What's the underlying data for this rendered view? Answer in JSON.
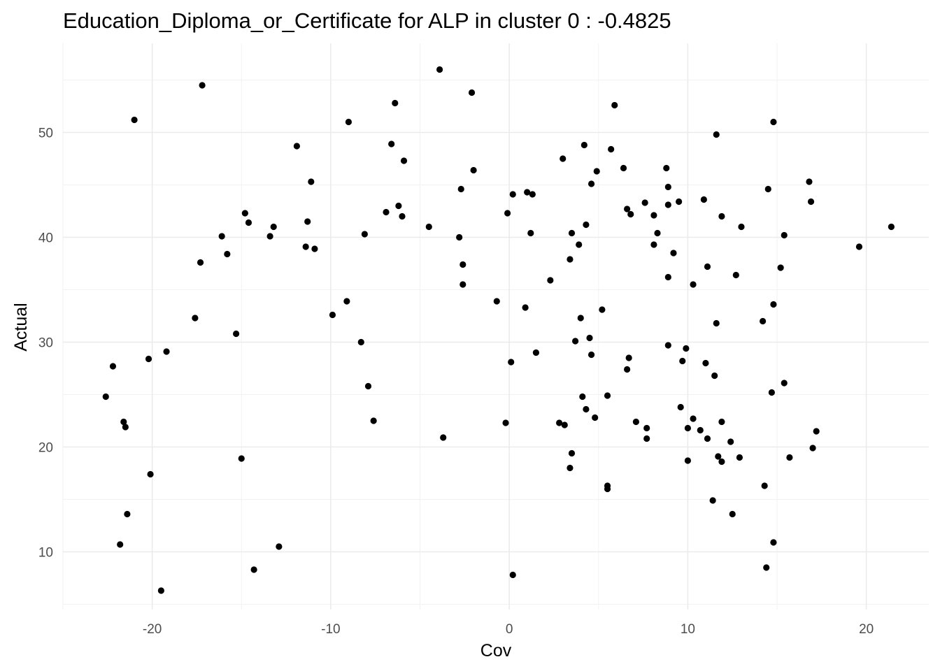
{
  "chart_data": {
    "type": "scatter",
    "title": "Education_Diploma_or_Certificate for ALP in cluster 0 : -0.4825",
    "xlabel": "Cov",
    "ylabel": "Actual",
    "xlim": [
      -25,
      23.5
    ],
    "ylim": [
      4.5,
      58.5
    ],
    "x_ticks": [
      -20,
      -10,
      0,
      10,
      20
    ],
    "y_ticks": [
      10,
      20,
      30,
      40,
      50
    ],
    "x_tick_labels": [
      "-20",
      "-10",
      "0",
      "10",
      "20"
    ],
    "y_tick_labels": [
      "10",
      "20",
      "30",
      "40",
      "50"
    ],
    "grid": true,
    "legend": "none",
    "point_color": "#000000",
    "points": [
      {
        "x": -22.6,
        "y": 24.8
      },
      {
        "x": -22.2,
        "y": 27.7
      },
      {
        "x": -21.6,
        "y": 22.4
      },
      {
        "x": -21.5,
        "y": 21.9
      },
      {
        "x": -21.4,
        "y": 13.6
      },
      {
        "x": -21.8,
        "y": 10.7
      },
      {
        "x": -21.0,
        "y": 51.2
      },
      {
        "x": -20.2,
        "y": 28.4
      },
      {
        "x": -20.1,
        "y": 17.4
      },
      {
        "x": -19.5,
        "y": 6.3
      },
      {
        "x": -19.2,
        "y": 29.1
      },
      {
        "x": -17.6,
        "y": 32.3
      },
      {
        "x": -17.3,
        "y": 37.6
      },
      {
        "x": -17.2,
        "y": 54.5
      },
      {
        "x": -16.1,
        "y": 40.1
      },
      {
        "x": -15.8,
        "y": 38.4
      },
      {
        "x": -15.3,
        "y": 30.8
      },
      {
        "x": -15.0,
        "y": 18.9
      },
      {
        "x": -14.8,
        "y": 42.3
      },
      {
        "x": -14.6,
        "y": 41.4
      },
      {
        "x": -14.3,
        "y": 8.3
      },
      {
        "x": -13.4,
        "y": 40.1
      },
      {
        "x": -13.2,
        "y": 41.0
      },
      {
        "x": -12.9,
        "y": 10.5
      },
      {
        "x": -11.9,
        "y": 48.7
      },
      {
        "x": -11.4,
        "y": 39.1
      },
      {
        "x": -11.3,
        "y": 41.5
      },
      {
        "x": -11.1,
        "y": 45.3
      },
      {
        "x": -10.9,
        "y": 38.9
      },
      {
        "x": -9.9,
        "y": 32.6
      },
      {
        "x": -9.1,
        "y": 33.9
      },
      {
        "x": -9.0,
        "y": 51.0
      },
      {
        "x": -8.3,
        "y": 30.0
      },
      {
        "x": -8.1,
        "y": 40.3
      },
      {
        "x": -7.9,
        "y": 25.8
      },
      {
        "x": -7.6,
        "y": 22.5
      },
      {
        "x": -6.9,
        "y": 42.4
      },
      {
        "x": -6.6,
        "y": 48.9
      },
      {
        "x": -6.4,
        "y": 52.8
      },
      {
        "x": -6.2,
        "y": 43.0
      },
      {
        "x": -6.0,
        "y": 42.0
      },
      {
        "x": -5.9,
        "y": 47.3
      },
      {
        "x": -4.5,
        "y": 41.0
      },
      {
        "x": -3.9,
        "y": 56.0
      },
      {
        "x": -3.7,
        "y": 20.9
      },
      {
        "x": -2.8,
        "y": 40.0
      },
      {
        "x": -2.7,
        "y": 44.6
      },
      {
        "x": -2.6,
        "y": 37.4
      },
      {
        "x": -2.6,
        "y": 35.5
      },
      {
        "x": -2.1,
        "y": 53.8
      },
      {
        "x": -2.0,
        "y": 46.4
      },
      {
        "x": -0.7,
        "y": 33.9
      },
      {
        "x": -0.2,
        "y": 22.3
      },
      {
        "x": -0.1,
        "y": 42.3
      },
      {
        "x": 0.1,
        "y": 28.1
      },
      {
        "x": 0.2,
        "y": 44.1
      },
      {
        "x": 0.2,
        "y": 7.8
      },
      {
        "x": 0.9,
        "y": 33.3
      },
      {
        "x": 1.0,
        "y": 44.3
      },
      {
        "x": 1.2,
        "y": 40.4
      },
      {
        "x": 1.3,
        "y": 44.1
      },
      {
        "x": 1.5,
        "y": 29.0
      },
      {
        "x": 2.3,
        "y": 35.9
      },
      {
        "x": 2.8,
        "y": 22.3
      },
      {
        "x": 3.0,
        "y": 47.5
      },
      {
        "x": 3.1,
        "y": 22.1
      },
      {
        "x": 3.4,
        "y": 37.9
      },
      {
        "x": 3.4,
        "y": 18.0
      },
      {
        "x": 3.5,
        "y": 19.4
      },
      {
        "x": 3.5,
        "y": 40.4
      },
      {
        "x": 3.7,
        "y": 30.1
      },
      {
        "x": 3.9,
        "y": 39.3
      },
      {
        "x": 4.0,
        "y": 32.3
      },
      {
        "x": 4.1,
        "y": 24.8
      },
      {
        "x": 4.2,
        "y": 48.8
      },
      {
        "x": 4.3,
        "y": 41.2
      },
      {
        "x": 4.3,
        "y": 23.6
      },
      {
        "x": 4.5,
        "y": 30.4
      },
      {
        "x": 4.6,
        "y": 28.8
      },
      {
        "x": 4.6,
        "y": 45.1
      },
      {
        "x": 4.8,
        "y": 22.8
      },
      {
        "x": 4.9,
        "y": 46.3
      },
      {
        "x": 5.2,
        "y": 33.1
      },
      {
        "x": 5.5,
        "y": 24.9
      },
      {
        "x": 5.5,
        "y": 16.3
      },
      {
        "x": 5.5,
        "y": 16.0
      },
      {
        "x": 5.7,
        "y": 48.4
      },
      {
        "x": 5.9,
        "y": 52.6
      },
      {
        "x": 6.4,
        "y": 46.6
      },
      {
        "x": 6.6,
        "y": 27.4
      },
      {
        "x": 6.6,
        "y": 42.7
      },
      {
        "x": 6.7,
        "y": 28.5
      },
      {
        "x": 6.8,
        "y": 42.2
      },
      {
        "x": 7.1,
        "y": 22.4
      },
      {
        "x": 7.6,
        "y": 43.3
      },
      {
        "x": 7.7,
        "y": 21.8
      },
      {
        "x": 7.7,
        "y": 20.8
      },
      {
        "x": 8.1,
        "y": 42.1
      },
      {
        "x": 8.1,
        "y": 39.3
      },
      {
        "x": 8.3,
        "y": 40.4
      },
      {
        "x": 8.8,
        "y": 46.6
      },
      {
        "x": 8.9,
        "y": 29.7
      },
      {
        "x": 8.9,
        "y": 44.8
      },
      {
        "x": 8.9,
        "y": 36.2
      },
      {
        "x": 8.9,
        "y": 43.1
      },
      {
        "x": 9.2,
        "y": 38.5
      },
      {
        "x": 9.5,
        "y": 43.4
      },
      {
        "x": 9.6,
        "y": 23.8
      },
      {
        "x": 9.7,
        "y": 28.2
      },
      {
        "x": 9.9,
        "y": 29.4
      },
      {
        "x": 10.0,
        "y": 21.8
      },
      {
        "x": 10.0,
        "y": 18.7
      },
      {
        "x": 10.3,
        "y": 22.7
      },
      {
        "x": 10.3,
        "y": 35.5
      },
      {
        "x": 10.7,
        "y": 21.6
      },
      {
        "x": 10.9,
        "y": 43.6
      },
      {
        "x": 11.0,
        "y": 28.0
      },
      {
        "x": 11.1,
        "y": 20.8
      },
      {
        "x": 11.1,
        "y": 37.2
      },
      {
        "x": 11.4,
        "y": 14.9
      },
      {
        "x": 11.5,
        "y": 26.8
      },
      {
        "x": 11.6,
        "y": 49.8
      },
      {
        "x": 11.6,
        "y": 31.8
      },
      {
        "x": 11.7,
        "y": 19.1
      },
      {
        "x": 11.9,
        "y": 42.0
      },
      {
        "x": 11.9,
        "y": 22.4
      },
      {
        "x": 11.9,
        "y": 18.6
      },
      {
        "x": 12.4,
        "y": 20.5
      },
      {
        "x": 12.5,
        "y": 13.6
      },
      {
        "x": 12.7,
        "y": 36.4
      },
      {
        "x": 12.9,
        "y": 19.0
      },
      {
        "x": 13.0,
        "y": 41.0
      },
      {
        "x": 14.2,
        "y": 32.0
      },
      {
        "x": 14.3,
        "y": 16.3
      },
      {
        "x": 14.4,
        "y": 8.5
      },
      {
        "x": 14.5,
        "y": 44.6
      },
      {
        "x": 14.7,
        "y": 25.2
      },
      {
        "x": 14.8,
        "y": 51.0
      },
      {
        "x": 14.8,
        "y": 33.6
      },
      {
        "x": 14.8,
        "y": 10.9
      },
      {
        "x": 15.2,
        "y": 37.1
      },
      {
        "x": 15.4,
        "y": 40.2
      },
      {
        "x": 15.4,
        "y": 26.1
      },
      {
        "x": 15.7,
        "y": 19.0
      },
      {
        "x": 16.8,
        "y": 45.3
      },
      {
        "x": 16.9,
        "y": 43.4
      },
      {
        "x": 17.0,
        "y": 19.9
      },
      {
        "x": 17.2,
        "y": 21.5
      },
      {
        "x": 19.6,
        "y": 39.1
      },
      {
        "x": 21.4,
        "y": 41.0
      }
    ]
  }
}
